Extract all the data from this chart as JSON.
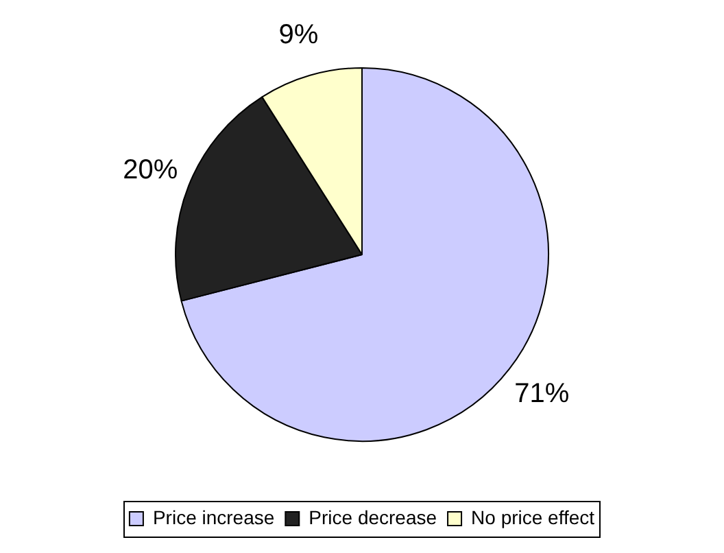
{
  "chart_data": {
    "type": "pie",
    "categories": [
      "Price increase",
      "Price decrease",
      "No price effect"
    ],
    "values": [
      71,
      20,
      9
    ],
    "colors": [
      "#ccccff",
      "#222222",
      "#ffffcc"
    ],
    "value_labels": [
      "71%",
      "20%",
      "9%"
    ],
    "legend": "bottom"
  }
}
